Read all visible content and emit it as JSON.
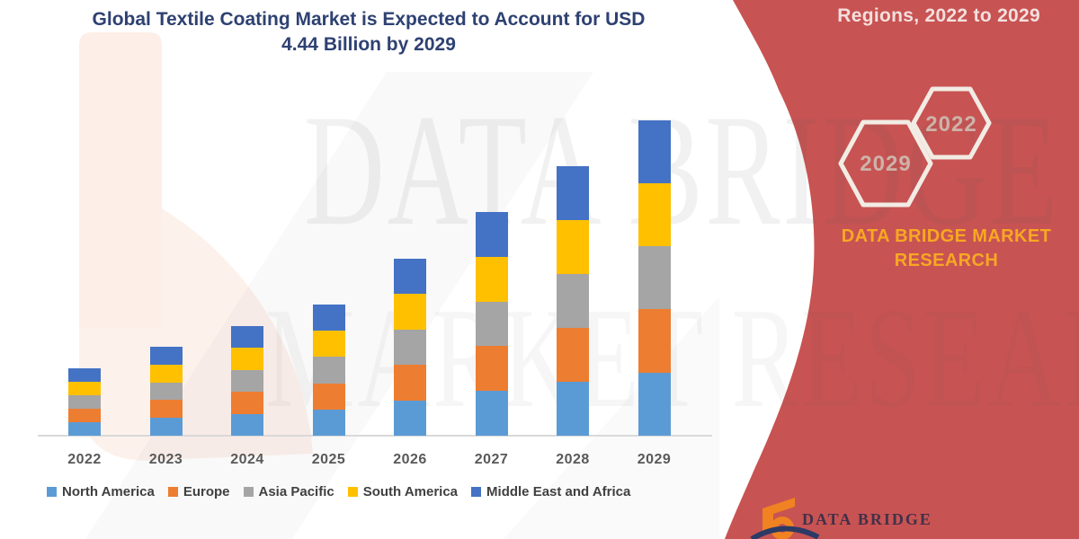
{
  "title": {
    "line1": "Global Textile Coating Market is Expected to Account for USD",
    "line2": "4.44 Billion by 2029"
  },
  "banner": {
    "heading": "Regions, 2022 to 2029",
    "hexagon_large_label": "2029",
    "hexagon_small_label": "2022",
    "brand_line1": "DATA BRIDGE MARKET",
    "brand_line2": "RESEARCH",
    "background_color": "#C85353",
    "brand_color": "#F7A823"
  },
  "watermark": {
    "line1": "DATA BRIDGE",
    "line2": "MARKET RESEARCH"
  },
  "footer_logo": {
    "label": "DATA BRIDGE"
  },
  "chart_data": {
    "type": "bar",
    "stacked": true,
    "title": "Global Textile Coating Market is Expected to Account for USD 4.44 Billion by 2029",
    "unit": "USD Billion",
    "categories": [
      "2022",
      "2023",
      "2024",
      "2025",
      "2026",
      "2027",
      "2028",
      "2029"
    ],
    "series": [
      {
        "name": "North America",
        "color": "#5B9BD5",
        "values": [
          0.19,
          0.25,
          0.31,
          0.37,
          0.5,
          0.63,
          0.76,
          0.89
        ]
      },
      {
        "name": "Europe",
        "color": "#ED7D31",
        "values": [
          0.19,
          0.25,
          0.31,
          0.37,
          0.5,
          0.63,
          0.76,
          0.89
        ]
      },
      {
        "name": "Asia Pacific",
        "color": "#A5A5A5",
        "values": [
          0.19,
          0.25,
          0.31,
          0.37,
          0.5,
          0.63,
          0.76,
          0.89
        ]
      },
      {
        "name": "South America",
        "color": "#FFC000",
        "values": [
          0.19,
          0.25,
          0.31,
          0.37,
          0.5,
          0.63,
          0.76,
          0.89
        ]
      },
      {
        "name": "Middle East and Africa",
        "color": "#4472C4",
        "values": [
          0.19,
          0.25,
          0.31,
          0.37,
          0.5,
          0.63,
          0.76,
          0.89
        ]
      }
    ],
    "totals": [
      0.94,
      1.25,
      1.55,
      1.87,
      2.5,
      3.14,
      3.79,
      4.44
    ],
    "ylim": [
      0,
      4.6
    ],
    "grid": false,
    "y_axis_visible": false,
    "legend_position": "bottom"
  }
}
